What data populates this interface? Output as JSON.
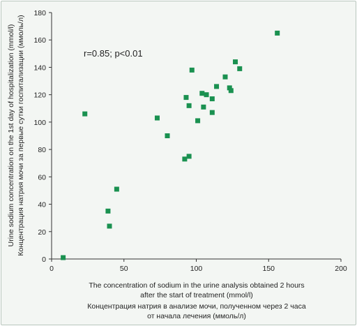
{
  "chart_data": {
    "type": "scatter",
    "annotation": "r=0.85; p<0.01",
    "xlabel_lines": [
      "The concentration of sodium in the urine analysis obtained 2 hours",
      "after the start of treatment (mmol/l)",
      "Концентрация натрия в анализе мочи, полученном через 2 часа",
      "от начала лечения (ммоль/л)"
    ],
    "ylabel_lines": [
      "Urine sodium concentration on the 1st day of hospitalization (mmol/l)",
      "Концентрация натрия мочи за первые сутки госпитализации (ммоль/л)"
    ],
    "xlim": [
      0,
      200
    ],
    "ylim": [
      0,
      180
    ],
    "xticks": [
      0,
      50,
      100,
      150,
      200
    ],
    "yticks": [
      0,
      20,
      40,
      60,
      80,
      100,
      120,
      140,
      160,
      180
    ],
    "grid": false,
    "marker_color": "#1a9150",
    "points": [
      {
        "x": 8,
        "y": 1
      },
      {
        "x": 23,
        "y": 106
      },
      {
        "x": 39,
        "y": 35
      },
      {
        "x": 40,
        "y": 24
      },
      {
        "x": 45,
        "y": 51
      },
      {
        "x": 73,
        "y": 103
      },
      {
        "x": 80,
        "y": 90
      },
      {
        "x": 92,
        "y": 73
      },
      {
        "x": 93,
        "y": 118
      },
      {
        "x": 95,
        "y": 112
      },
      {
        "x": 95,
        "y": 75
      },
      {
        "x": 97,
        "y": 138
      },
      {
        "x": 101,
        "y": 101
      },
      {
        "x": 104,
        "y": 121
      },
      {
        "x": 105,
        "y": 111
      },
      {
        "x": 107,
        "y": 120
      },
      {
        "x": 111,
        "y": 117
      },
      {
        "x": 111,
        "y": 107
      },
      {
        "x": 114,
        "y": 126
      },
      {
        "x": 120,
        "y": 133
      },
      {
        "x": 123,
        "y": 125
      },
      {
        "x": 124,
        "y": 123
      },
      {
        "x": 127,
        "y": 144
      },
      {
        "x": 130,
        "y": 139
      },
      {
        "x": 156,
        "y": 165
      }
    ]
  }
}
